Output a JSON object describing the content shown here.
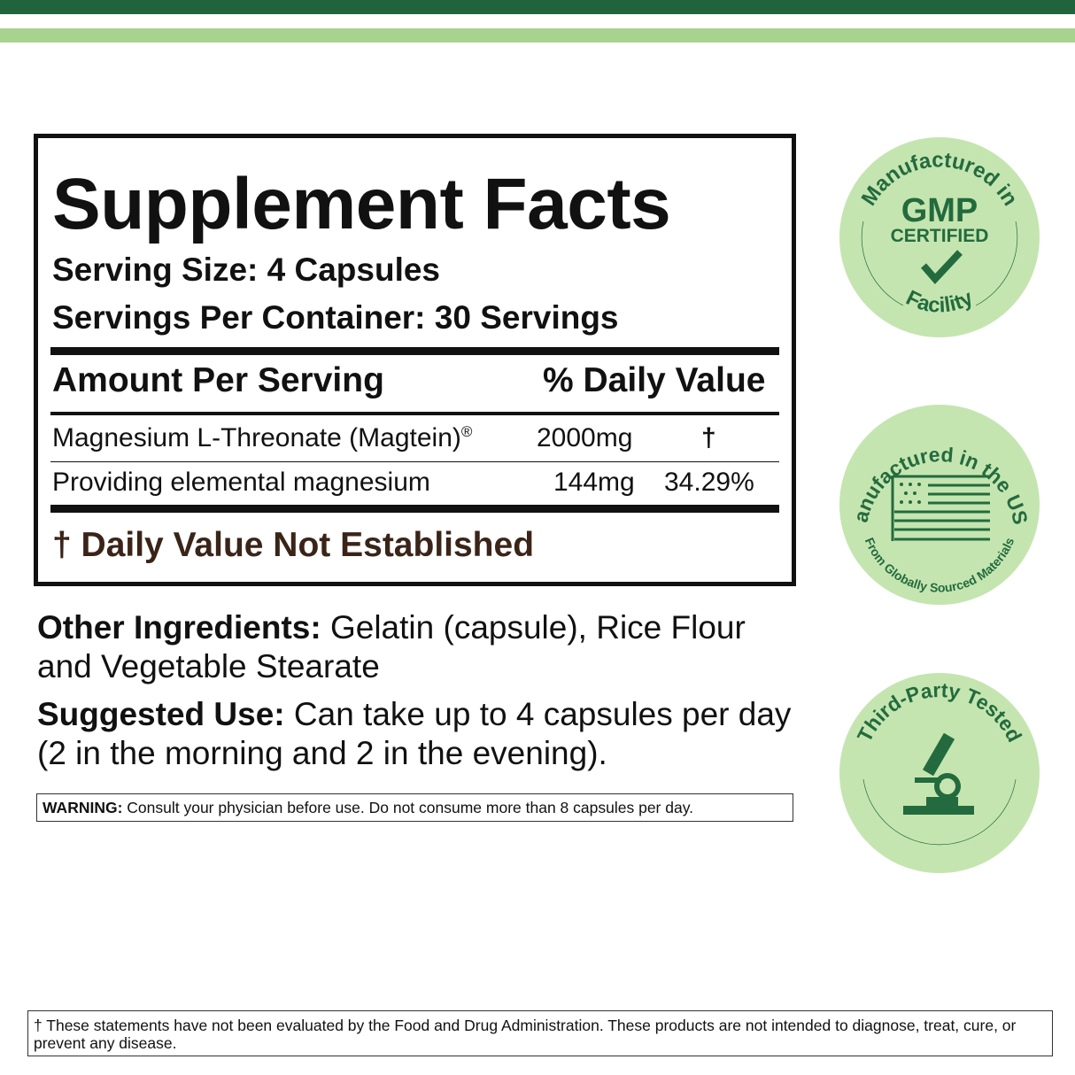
{
  "facts": {
    "title": "Supplement Facts",
    "serving_size": "Serving Size: 4 Capsules",
    "servings_per_container": "Servings Per Container:  30 Servings",
    "amount_header": "Amount Per Serving",
    "dv_header": "% Daily Value",
    "rows": [
      {
        "name": "Magnesium L-Threonate (Magtein)",
        "mark": "®",
        "amount": "2000mg",
        "dv": "†"
      },
      {
        "name": "Providing elemental magnesium",
        "amount": "144mg",
        "dv": "34.29%"
      }
    ],
    "footnote": "† Daily Value Not Established"
  },
  "other_ingredients": {
    "label": "Other Ingredients:",
    "text": " Gelatin (capsule), Rice Flour and Vegetable Stearate"
  },
  "suggested_use": {
    "label": "Suggested Use:",
    "text": " Can take up to 4 capsules per day (2 in the morning and 2 in the evening)."
  },
  "warning": {
    "label": "WARNING:",
    "text": " Consult your physician before use. Do not consume more than 8 capsules per day."
  },
  "disclaimer": "† These statements have not been evaluated by the Food and Drug Administration. These products are not intended to diagnose, treat, cure, or prevent any disease.",
  "badges": [
    {
      "top": "Manufactured in",
      "main": "GMP",
      "sub": "CERTIFIED",
      "bottom": "Facility",
      "icon": "checkmark-icon"
    },
    {
      "top": "Manufactured in the USA",
      "bottom": "From Globally Sourced Materials",
      "icon": "us-flag-icon"
    },
    {
      "top": "Third-Party Tested",
      "icon": "microscope-icon"
    }
  ],
  "colors": {
    "dark_green": "#21633d",
    "light_green": "#a8d38f",
    "badge_fill": "#c5e5b0",
    "badge_text": "#236b3e",
    "footnote_brown": "#3a2418"
  }
}
